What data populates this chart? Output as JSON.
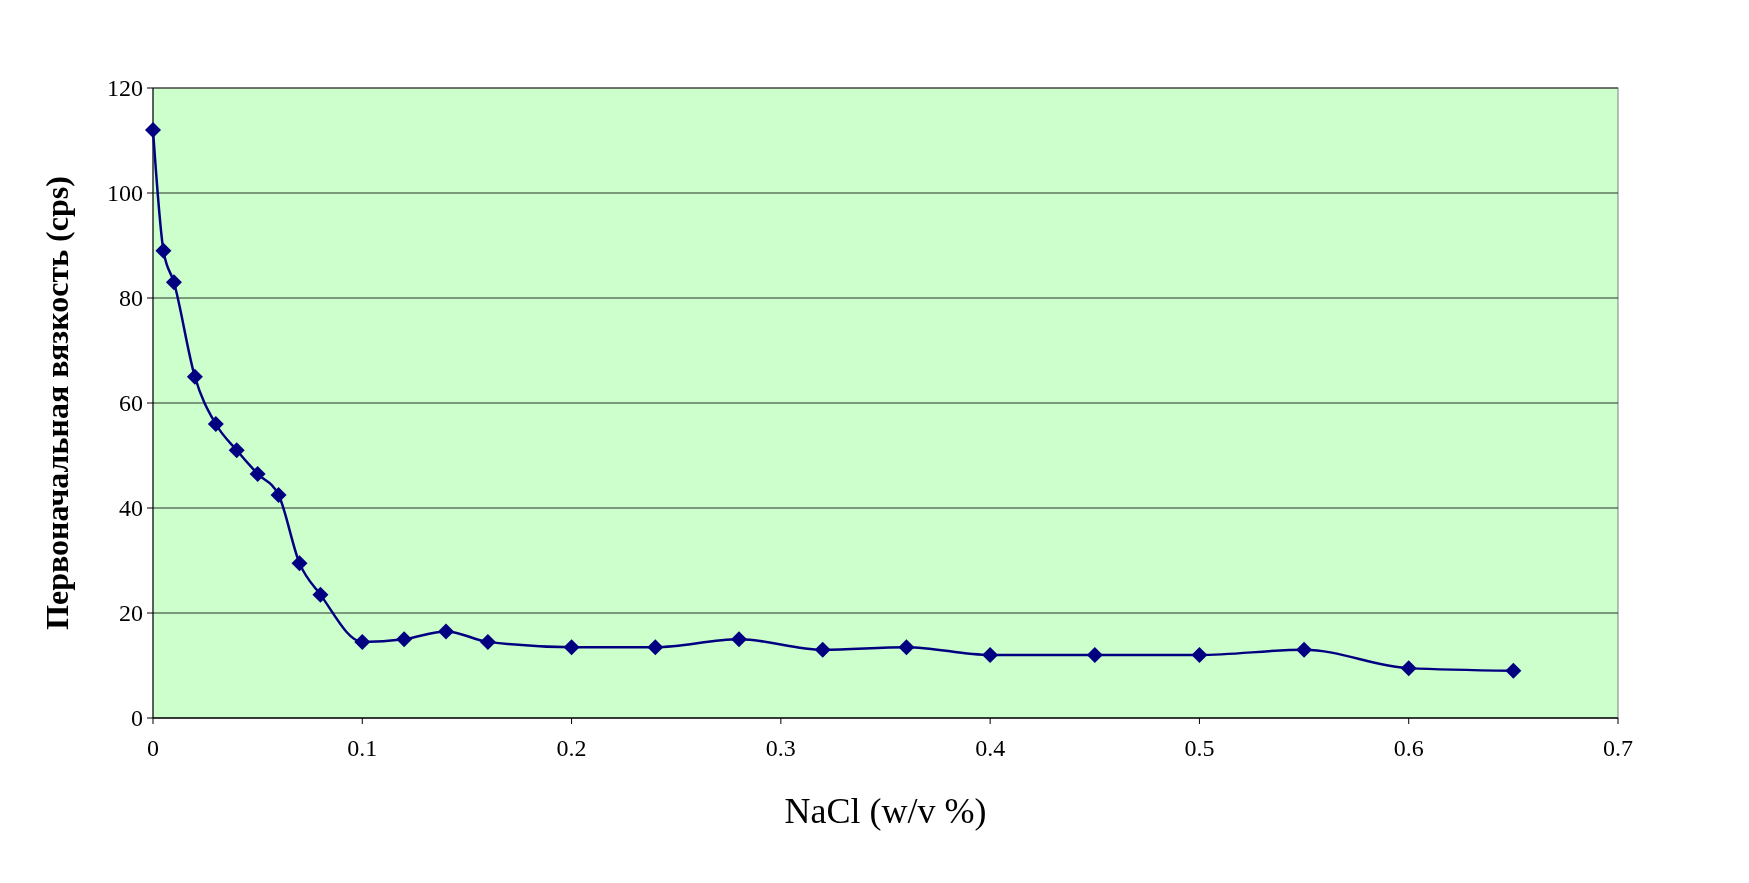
{
  "chart_data": {
    "type": "line",
    "xlabel": "NaCl (w/v %)",
    "ylabel": "Первоначальная вязкость (cps)",
    "x": [
      0,
      0.005,
      0.01,
      0.02,
      0.03,
      0.04,
      0.05,
      0.06,
      0.07,
      0.08,
      0.1,
      0.12,
      0.14,
      0.16,
      0.2,
      0.24,
      0.28,
      0.32,
      0.36,
      0.4,
      0.45,
      0.5,
      0.55,
      0.6,
      0.65
    ],
    "series": [
      {
        "color": "#000080",
        "values": [
          112,
          89,
          83,
          65,
          56,
          51,
          46.5,
          42.5,
          29.5,
          23.5,
          14.5,
          15,
          16.5,
          14.5,
          13.5,
          13.5,
          15,
          13,
          13.5,
          12,
          12,
          12,
          13,
          9.5,
          9
        ]
      }
    ],
    "xlim": [
      0,
      0.7
    ],
    "xticks": [
      0,
      0.1,
      0.2,
      0.3,
      0.4,
      0.5,
      0.6,
      0.7
    ],
    "ylim": [
      0,
      120
    ],
    "yticks": [
      0,
      20,
      40,
      60,
      80,
      100,
      120
    ],
    "grid": "y",
    "marker": "diamond",
    "line_style": "solid"
  }
}
